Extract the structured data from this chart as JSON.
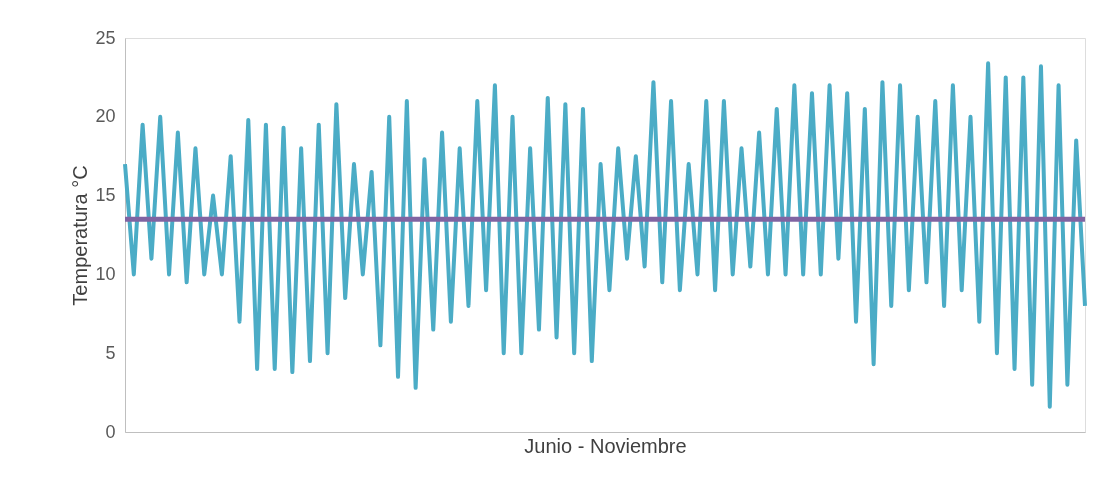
{
  "chart_data": {
    "type": "line",
    "xlabel": "Junio - Noviembre",
    "ylabel": "Temperatura °C",
    "categories": [
      null,
      null,
      null,
      null,
      null,
      null,
      null,
      null,
      null,
      null,
      null,
      null,
      null,
      null,
      null,
      null,
      null,
      null,
      null,
      null,
      null,
      null,
      null,
      null,
      null,
      null,
      null,
      null,
      null,
      null,
      null,
      null,
      null,
      null,
      null,
      null,
      null,
      null,
      null,
      null,
      null,
      null,
      null,
      null,
      null,
      null,
      null,
      null,
      null,
      null,
      null,
      null,
      null,
      null,
      null,
      null,
      null,
      null,
      null,
      null,
      null,
      null,
      null,
      null,
      null,
      null,
      null,
      null,
      null,
      null,
      null,
      null,
      null,
      null,
      null,
      null,
      null,
      null,
      null,
      null,
      null,
      null,
      null,
      null,
      null,
      null,
      null,
      null,
      null,
      null,
      null,
      null,
      null,
      null,
      null,
      null,
      null,
      null,
      null,
      null,
      null,
      null,
      null,
      null,
      null,
      null,
      null,
      null,
      null,
      null
    ],
    "series": [
      {
        "color": "#4bacc6",
        "values": [
          17,
          10,
          19.5,
          11,
          20,
          10,
          19,
          9.5,
          18,
          10,
          15,
          10,
          17.5,
          7,
          19.8,
          4,
          19.5,
          4,
          19.3,
          3.8,
          18,
          4.5,
          19.5,
          5,
          20.8,
          8.5,
          17,
          10,
          16.5,
          5.5,
          20,
          3.5,
          21,
          2.8,
          17.3,
          6.5,
          19,
          7,
          18,
          8,
          21,
          9,
          22,
          5,
          20,
          5,
          18,
          6.5,
          21.2,
          6,
          20.8,
          5,
          20.5,
          4.5,
          17,
          9,
          18,
          11,
          17.5,
          10.5,
          22.2,
          9.5,
          21,
          9,
          17,
          10,
          21,
          9,
          21,
          10,
          18,
          10.5,
          19,
          10,
          20.5,
          10,
          22,
          10,
          21.5,
          10,
          22,
          11,
          21.5,
          7,
          20.5,
          4.3,
          22.2,
          8,
          22,
          9,
          20,
          9.5,
          21,
          8,
          22,
          9,
          20,
          7,
          23.4,
          5,
          22.5,
          4,
          22.5,
          3,
          23.2,
          1.6,
          22,
          3,
          18.5,
          8
        ]
      }
    ],
    "ylim": [
      0,
      25
    ],
    "yticks": [
      0,
      5,
      10,
      15,
      20,
      25
    ],
    "grid": false,
    "tick_labels": "y",
    "line_style": "solid",
    "marker": "none",
    "ref_lines": [
      {
        "axis": "y",
        "value": 13.5,
        "color": "#8064a2",
        "line_style": "solid"
      }
    ]
  }
}
